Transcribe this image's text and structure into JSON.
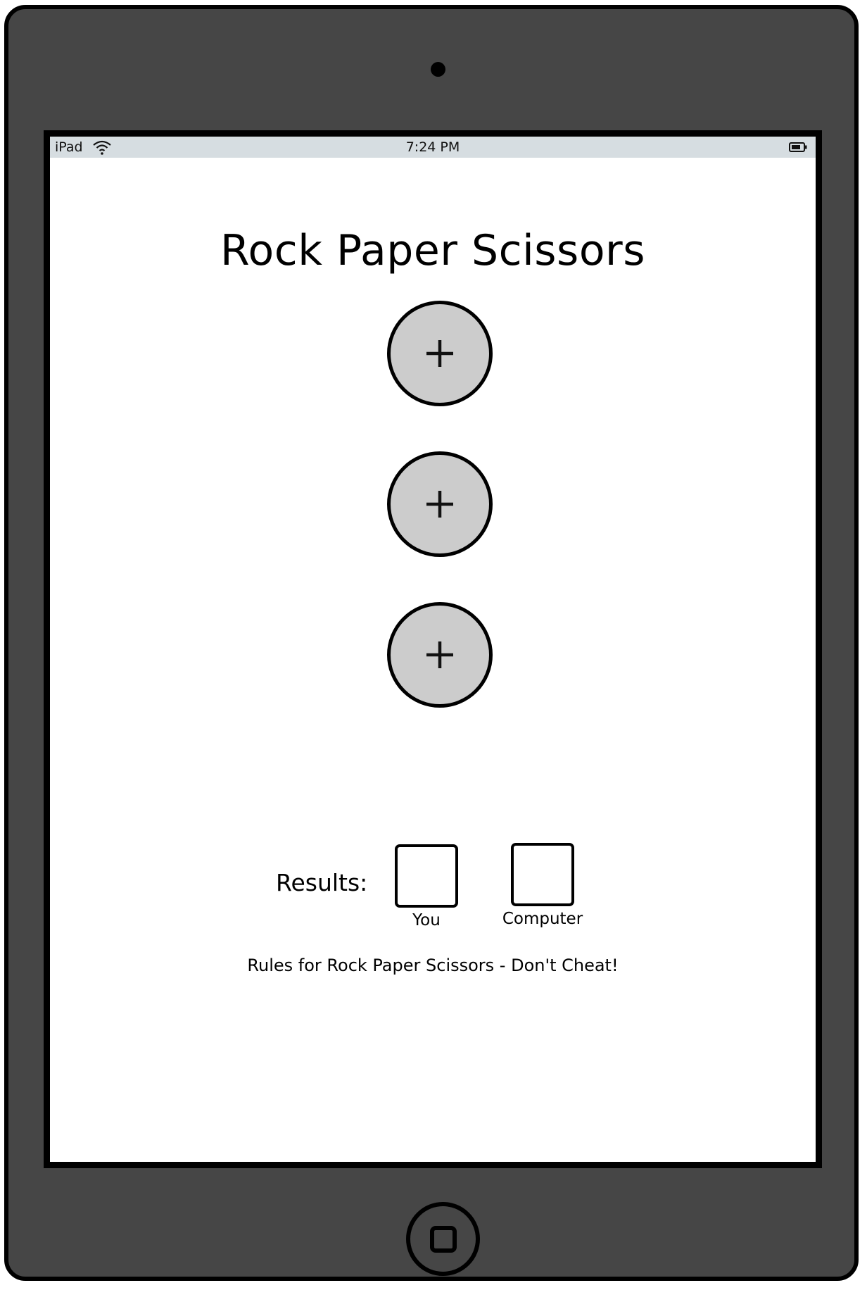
{
  "status_bar": {
    "device": "iPad",
    "time": "7:24 PM",
    "wifi_icon": "wifi-icon",
    "battery_icon": "battery-icon"
  },
  "app": {
    "title": "Rock Paper Scissors",
    "choices": [
      {
        "icon": "plus-icon"
      },
      {
        "icon": "plus-icon"
      },
      {
        "icon": "plus-icon"
      }
    ],
    "results": {
      "label": "Results:",
      "player_caption": "You",
      "computer_caption": "Computer"
    },
    "rules_text": "Rules for Rock Paper Scissors - Don't Cheat!"
  },
  "colors": {
    "device_body": "#464646",
    "status_bar": "#d6dde1",
    "choice_fill": "#cccccc"
  }
}
